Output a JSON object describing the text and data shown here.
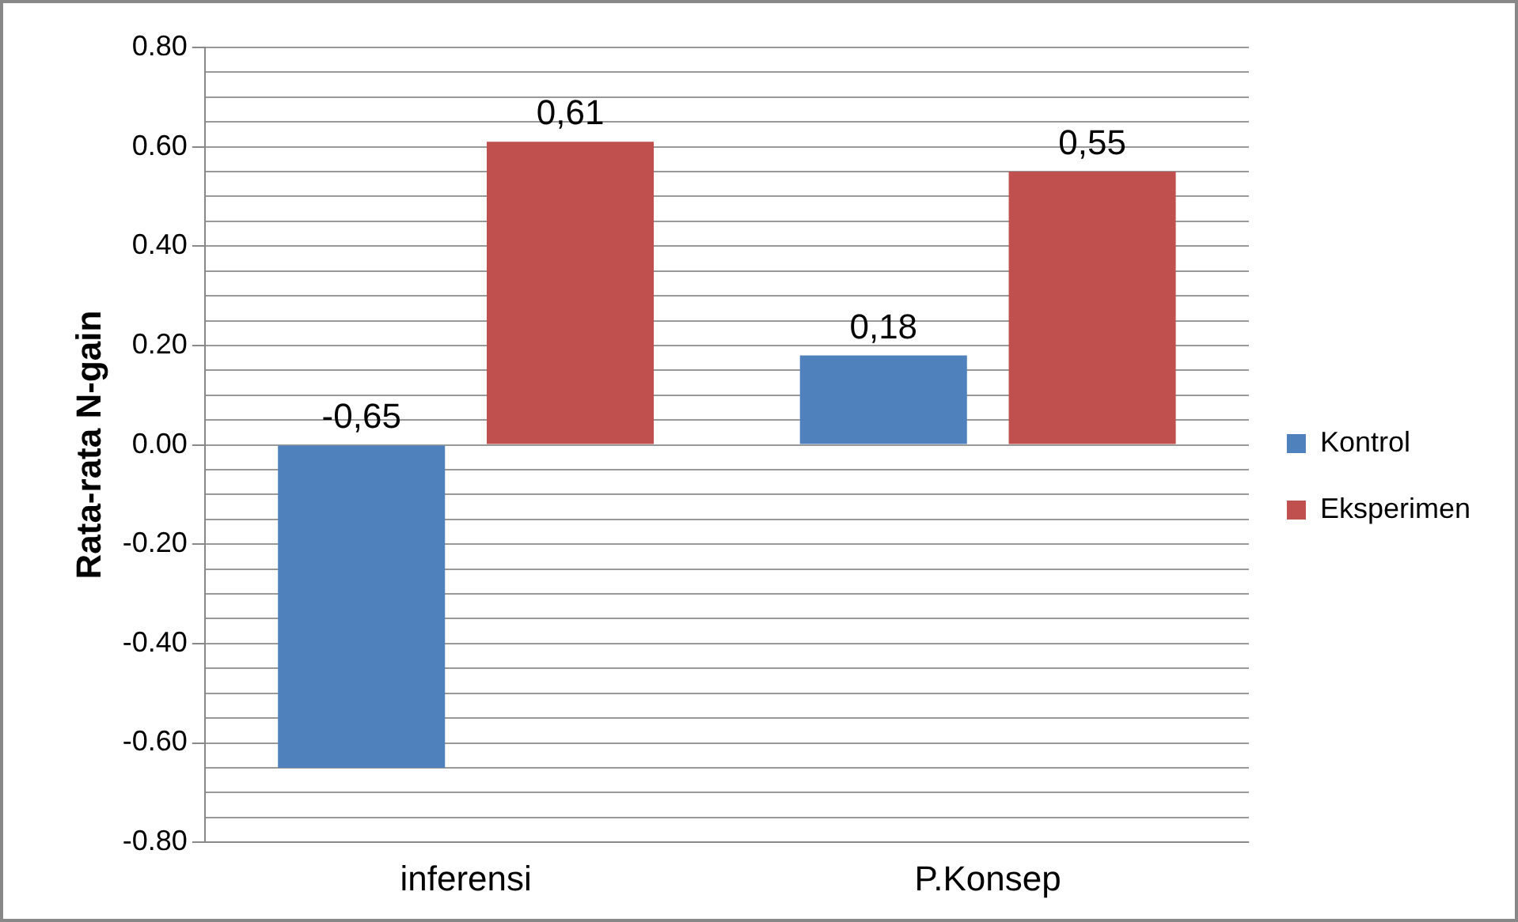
{
  "chart_data": {
    "type": "bar",
    "ylabel": "Rata-rata N-gain",
    "categories": [
      "inferensi",
      "P.Konsep"
    ],
    "series": [
      {
        "name": "Kontrol",
        "color": "#4f81bd",
        "values": [
          -0.65,
          0.18
        ],
        "value_labels": [
          "-0,65",
          "0,18"
        ]
      },
      {
        "name": "Eksperimen",
        "color": "#c0504d",
        "values": [
          0.61,
          0.55
        ],
        "value_labels": [
          "0,61",
          "0,55"
        ]
      }
    ],
    "ylim": [
      -0.8,
      0.8
    ],
    "yticks": [
      {
        "value": -0.8,
        "label": "-0.80"
      },
      {
        "value": -0.75,
        "label": null
      },
      {
        "value": -0.7,
        "label": null
      },
      {
        "value": -0.65,
        "label": null
      },
      {
        "value": -0.6,
        "label": "-0.60"
      },
      {
        "value": -0.55,
        "label": null
      },
      {
        "value": -0.5,
        "label": null
      },
      {
        "value": -0.45,
        "label": null
      },
      {
        "value": -0.4,
        "label": "-0.40"
      },
      {
        "value": -0.35,
        "label": null
      },
      {
        "value": -0.3,
        "label": null
      },
      {
        "value": -0.25,
        "label": null
      },
      {
        "value": -0.2,
        "label": "-0.20"
      },
      {
        "value": -0.15,
        "label": null
      },
      {
        "value": -0.1,
        "label": null
      },
      {
        "value": -0.05,
        "label": null
      },
      {
        "value": 0,
        "label": "0.00"
      },
      {
        "value": 0.05,
        "label": null
      },
      {
        "value": 0.1,
        "label": null
      },
      {
        "value": 0.15,
        "label": null
      },
      {
        "value": 0.2,
        "label": "0.20"
      },
      {
        "value": 0.25,
        "label": null
      },
      {
        "value": 0.3,
        "label": null
      },
      {
        "value": 0.35,
        "label": null
      },
      {
        "value": 0.4,
        "label": "0.40"
      },
      {
        "value": 0.45,
        "label": null
      },
      {
        "value": 0.5,
        "label": null
      },
      {
        "value": 0.55,
        "label": null
      },
      {
        "value": 0.6,
        "label": "0.60"
      },
      {
        "value": 0.65,
        "label": null
      },
      {
        "value": 0.7,
        "label": null
      },
      {
        "value": 0.75,
        "label": null
      },
      {
        "value": 0.8,
        "label": "0.80"
      }
    ],
    "grid": "y",
    "legend": "right"
  }
}
